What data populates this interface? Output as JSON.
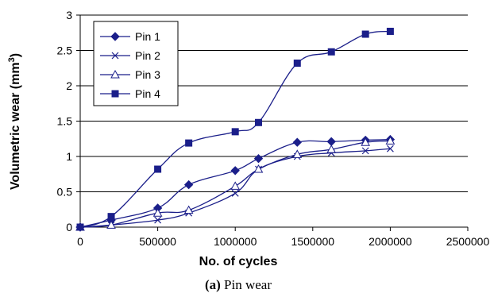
{
  "chart_data": {
    "type": "line",
    "xlabel": "No. of cycles",
    "ylabel_prefix": "Volumetric wear (mm",
    "ylabel_sup": "3",
    "ylabel_suffix": ")",
    "xlim": [
      0,
      2500000
    ],
    "ylim": [
      0,
      3
    ],
    "x_ticks": [
      0,
      500000,
      1000000,
      1500000,
      2000000,
      2500000
    ],
    "x_tick_labels": [
      "0",
      "500000",
      "1000000",
      "1500000",
      "2000000",
      "2500000"
    ],
    "y_ticks": [
      0,
      0.5,
      1,
      1.5,
      2,
      2.5,
      3
    ],
    "y_tick_labels": [
      "0",
      "0.5",
      "1",
      "1.5",
      "2",
      "2.5",
      "3"
    ],
    "grid": "horizontal",
    "legend_position": "top-left",
    "series": [
      {
        "name": "Pin 1",
        "marker": "diamond",
        "x": [
          0,
          200000,
          500000,
          700000,
          1000000,
          1150000,
          1400000,
          1620000,
          1840000,
          2000000
        ],
        "y": [
          0,
          0.1,
          0.27,
          0.6,
          0.8,
          0.97,
          1.2,
          1.21,
          1.23,
          1.24
        ]
      },
      {
        "name": "Pin 2",
        "marker": "x",
        "x": [
          0,
          200000,
          500000,
          700000,
          1000000,
          1150000,
          1400000,
          1620000,
          1840000,
          2000000
        ],
        "y": [
          0,
          0.03,
          0.1,
          0.2,
          0.48,
          0.82,
          1.0,
          1.05,
          1.08,
          1.11
        ]
      },
      {
        "name": "Pin 3",
        "marker": "triangle",
        "x": [
          0,
          200000,
          500000,
          700000,
          1000000,
          1150000,
          1400000,
          1620000,
          1840000,
          2000000
        ],
        "y": [
          0,
          0.03,
          0.2,
          0.24,
          0.58,
          0.82,
          1.03,
          1.1,
          1.2,
          1.22
        ]
      },
      {
        "name": "Pin 4",
        "marker": "square",
        "x": [
          0,
          200000,
          500000,
          700000,
          1000000,
          1150000,
          1400000,
          1620000,
          1840000,
          2000000
        ],
        "y": [
          0,
          0.15,
          0.82,
          1.19,
          1.35,
          1.48,
          2.32,
          2.48,
          2.73,
          2.77
        ]
      }
    ],
    "colors": {
      "series": "#1b1f8a",
      "axis": "#000000",
      "grid": "#000000"
    }
  },
  "caption": {
    "label": "(a)",
    "text": " Pin wear"
  }
}
